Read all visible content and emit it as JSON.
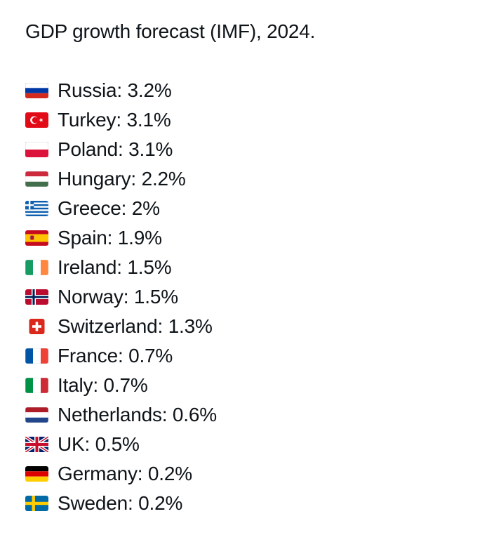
{
  "post": {
    "title": "GDP growth forecast (IMF), 2024.",
    "entries": [
      {
        "flag": "russia-flag-icon",
        "text": "Russia: 3.2%"
      },
      {
        "flag": "turkey-flag-icon",
        "text": "Turkey: 3.1%"
      },
      {
        "flag": "poland-flag-icon",
        "text": "Poland: 3.1%"
      },
      {
        "flag": "hungary-flag-icon",
        "text": "Hungary: 2.2%"
      },
      {
        "flag": "greece-flag-icon",
        "text": "Greece: 2%"
      },
      {
        "flag": "spain-flag-icon",
        "text": "Spain: 1.9%"
      },
      {
        "flag": "ireland-flag-icon",
        "text": "Ireland: 1.5%"
      },
      {
        "flag": "norway-flag-icon",
        "text": "Norway: 1.5%"
      },
      {
        "flag": "switzerland-flag-icon",
        "text": "Switzerland: 1.3%"
      },
      {
        "flag": "france-flag-icon",
        "text": "France: 0.7%"
      },
      {
        "flag": "italy-flag-icon",
        "text": "Italy: 0.7%"
      },
      {
        "flag": "netherlands-flag-icon",
        "text": "Netherlands: 0.6%"
      },
      {
        "flag": "uk-flag-icon",
        "text": "UK: 0.5%"
      },
      {
        "flag": "germany-flag-icon",
        "text": "Germany: 0.2%"
      },
      {
        "flag": "sweden-flag-icon",
        "text": "Sweden: 0.2%"
      }
    ]
  },
  "colors": {
    "text": "#0f1419",
    "background": "#ffffff"
  }
}
